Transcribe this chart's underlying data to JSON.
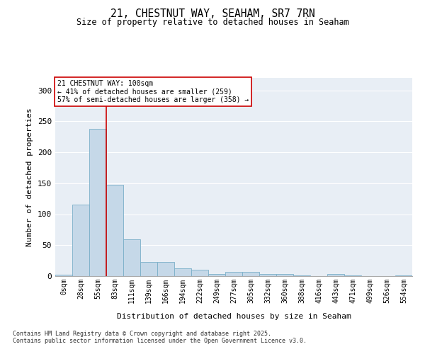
{
  "title": "21, CHESTNUT WAY, SEAHAM, SR7 7RN",
  "subtitle": "Size of property relative to detached houses in Seaham",
  "xlabel": "Distribution of detached houses by size in Seaham",
  "ylabel": "Number of detached properties",
  "bin_labels": [
    "0sqm",
    "28sqm",
    "55sqm",
    "83sqm",
    "111sqm",
    "139sqm",
    "166sqm",
    "194sqm",
    "222sqm",
    "249sqm",
    "277sqm",
    "305sqm",
    "332sqm",
    "360sqm",
    "388sqm",
    "416sqm",
    "443sqm",
    "471sqm",
    "499sqm",
    "526sqm",
    "554sqm"
  ],
  "bar_values": [
    2,
    115,
    238,
    148,
    60,
    23,
    23,
    13,
    10,
    4,
    7,
    7,
    3,
    4,
    1,
    0,
    3,
    1,
    0,
    0,
    1
  ],
  "bar_color": "#c5d8e8",
  "bar_edge_color": "#7aafc8",
  "annotation_line1": "21 CHESTNUT WAY: 100sqm",
  "annotation_line2": "← 41% of detached houses are smaller (259)",
  "annotation_line3": "57% of semi-detached houses are larger (358) →",
  "annotation_box_color": "#ffffff",
  "annotation_box_edge": "#cc0000",
  "red_line_color": "#cc0000",
  "ylim": [
    0,
    320
  ],
  "yticks": [
    0,
    50,
    100,
    150,
    200,
    250,
    300
  ],
  "background_color": "#e8eef5",
  "grid_color": "#ffffff",
  "footer_line1": "Contains HM Land Registry data © Crown copyright and database right 2025.",
  "footer_line2": "Contains public sector information licensed under the Open Government Licence v3.0."
}
